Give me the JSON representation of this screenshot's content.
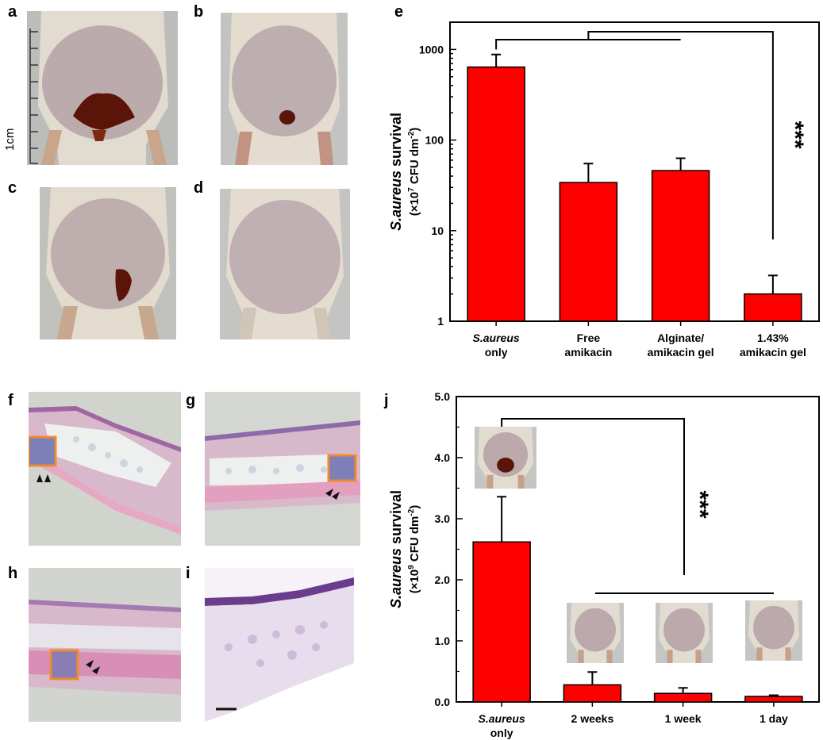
{
  "panel_labels": {
    "a": "a",
    "b": "b",
    "c": "c",
    "d": "d",
    "e": "e",
    "f": "f",
    "g": "g",
    "h": "h",
    "i": "i",
    "j": "j"
  },
  "scale_label": "1cm",
  "colors": {
    "bar": "#ff0000",
    "skin": "#b9a7a8",
    "fur": "#e4dccd",
    "wound": "#5a1408",
    "tissue_pink": "#d9a6c4",
    "tissue_purple": "#8d6aa8",
    "highlight_box": "#f08a30",
    "background_gray": "#c9cbc7"
  },
  "chart_data": [
    {
      "panel": "e",
      "type": "bar",
      "yscale": "log",
      "ylim": [
        1,
        2000
      ],
      "yticks": [
        "1",
        "10",
        "100",
        "1000"
      ],
      "ylabel": {
        "italic": "S.aureus",
        "rest": " survival",
        "line2": "(×10",
        "exp": "7",
        "line2b": " CFU dm",
        "exp2": "-2",
        "line2c": ")"
      },
      "categories": [
        {
          "line1": "S.aureus",
          "line2": "only",
          "italic1": true
        },
        {
          "line1": "Free",
          "line2": "amikacin",
          "italic1": false
        },
        {
          "line1": "Alginate/",
          "line2": "amikacin gel",
          "italic1": false
        },
        {
          "line1": "1.43%",
          "line2": "amikacin gel",
          "italic1": false
        }
      ],
      "values": [
        640,
        34,
        46,
        2
      ],
      "errors": [
        880,
        55,
        63,
        3.2
      ],
      "significance": "***"
    },
    {
      "panel": "j",
      "type": "bar",
      "yscale": "linear",
      "ylim": [
        0,
        5
      ],
      "yticks": [
        "0.0",
        "1.0",
        "2.0",
        "3.0",
        "4.0",
        "5.0"
      ],
      "ylabel": {
        "italic": "S.aureus",
        "rest": " survival",
        "line2": "(×10",
        "exp": "9",
        "line2b": " CFU dm",
        "exp2": "-2",
        "line2c": ")"
      },
      "categories": [
        {
          "line1": "S.aureus",
          "line2": "only",
          "italic1": true
        },
        {
          "line1": "2 weeks",
          "line2": "",
          "italic1": false
        },
        {
          "line1": "1 week",
          "line2": "",
          "italic1": false
        },
        {
          "line1": "1 day",
          "line2": "",
          "italic1": false
        }
      ],
      "values": [
        2.62,
        0.28,
        0.14,
        0.09
      ],
      "errors": [
        3.36,
        0.49,
        0.23,
        0.11
      ],
      "significance": "***"
    }
  ]
}
